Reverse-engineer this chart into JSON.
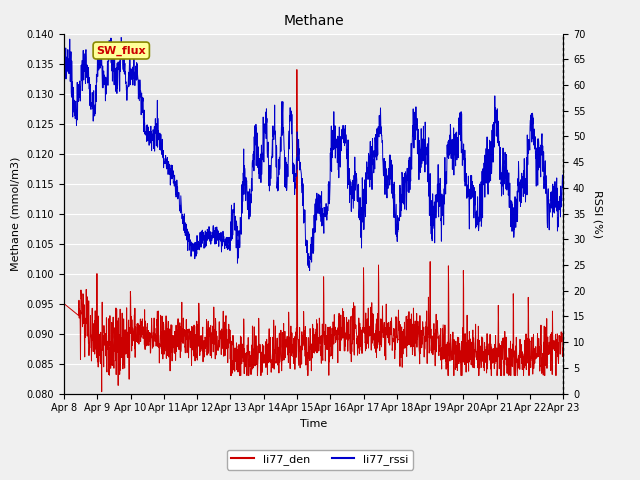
{
  "title": "Methane",
  "ylabel_left": "Methane (mmol/m3)",
  "ylabel_right": "RSSI (%)",
  "xlabel": "Time",
  "ylim_left": [
    0.08,
    0.14
  ],
  "ylim_right": [
    0,
    70
  ],
  "yticks_left": [
    0.08,
    0.085,
    0.09,
    0.095,
    0.1,
    0.105,
    0.11,
    0.115,
    0.12,
    0.125,
    0.13,
    0.135,
    0.14
  ],
  "yticks_right": [
    0,
    5,
    10,
    15,
    20,
    25,
    30,
    35,
    40,
    45,
    50,
    55,
    60,
    65,
    70
  ],
  "bg_color": "#e8e8e8",
  "grid_color": "#ffffff",
  "line_color_red": "#cc0000",
  "line_color_blue": "#0000cc",
  "legend_labels": [
    "li77_den",
    "li77_rssi"
  ],
  "annotation_text": "SW_flux",
  "annotation_bg": "#ffff99",
  "annotation_border": "#888800",
  "annotation_fg": "#cc0000",
  "n_points": 2000,
  "xtick_labels": [
    "Apr 8",
    "Apr 9",
    "Apr 10",
    "Apr 11",
    "Apr 12",
    "Apr 13",
    "Apr 14",
    "Apr 15",
    "Apr 16",
    "Apr 17",
    "Apr 18",
    "Apr 19",
    "Apr 20",
    "Apr 21",
    "Apr 22",
    "Apr 23"
  ]
}
